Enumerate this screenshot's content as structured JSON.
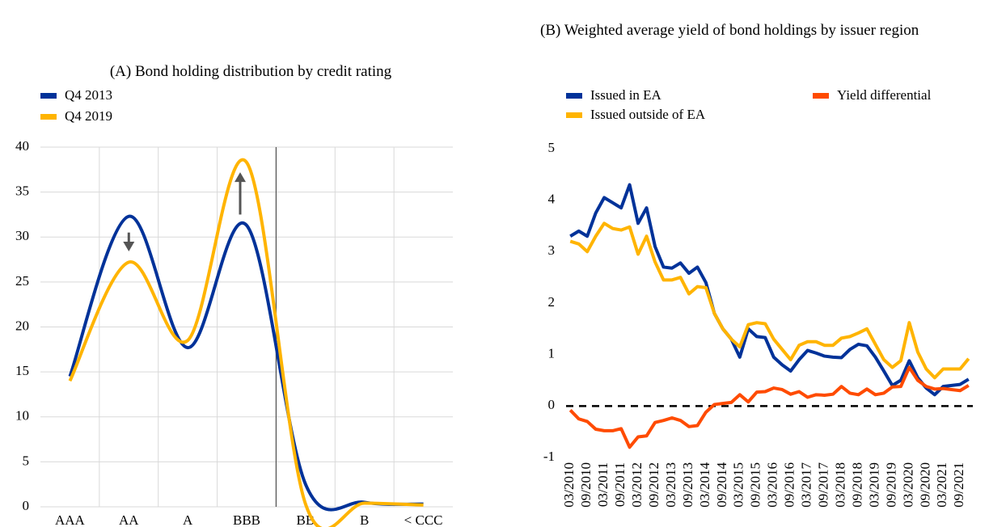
{
  "chart_data": [
    {
      "type": "line",
      "title": "(A) Bond holding distribution by credit rating",
      "categories": [
        "AAA",
        "AA",
        "A",
        "BBB",
        "BB",
        "B",
        "< CCC"
      ],
      "series": [
        {
          "name": "Q4 2013",
          "color": "#003299",
          "values": [
            14.5,
            32.3,
            17.7,
            31.3,
            2.5,
            0.5,
            0.3
          ]
        },
        {
          "name": "Q4 2019",
          "color": "#ffb400",
          "values": [
            14.0,
            27.2,
            18.5,
            38.3,
            0.3,
            0.4,
            0.2
          ]
        }
      ],
      "ylim": [
        0,
        40
      ],
      "yticks": [
        0,
        5,
        10,
        15,
        20,
        25,
        30,
        35,
        40
      ],
      "grid": true,
      "smooth": true
    },
    {
      "type": "line",
      "title": "(B) Weighted average yield of bond holdings by issuer region",
      "categories": [
        "03/2010",
        null,
        "09/2010",
        null,
        "03/2011",
        null,
        "09/2011",
        null,
        "03/2012",
        null,
        "09/2012",
        null,
        "03/2013",
        null,
        "09/2013",
        null,
        "03/2014",
        null,
        "09/2014",
        null,
        "03/2015",
        null,
        "09/2015",
        null,
        "03/2016",
        null,
        "09/2016",
        null,
        "03/2017",
        null,
        "09/2017",
        null,
        "03/2018",
        null,
        "09/2018",
        null,
        "03/2019",
        null,
        "09/2019",
        null,
        "03/2020",
        null,
        "09/2020",
        null,
        "03/2021",
        null,
        "09/2021",
        null
      ],
      "series": [
        {
          "name": "Issued in EA",
          "color": "#003299",
          "values": [
            3.3,
            3.4,
            3.3,
            3.75,
            4.05,
            3.95,
            3.85,
            4.3,
            3.55,
            3.85,
            3.1,
            2.7,
            2.68,
            2.78,
            2.58,
            2.7,
            2.4,
            1.8,
            1.5,
            1.3,
            0.95,
            1.5,
            1.35,
            1.33,
            0.95,
            0.8,
            0.68,
            0.9,
            1.08,
            1.03,
            0.97,
            0.95,
            0.94,
            1.1,
            1.2,
            1.17,
            0.95,
            0.68,
            0.4,
            0.5,
            0.88,
            0.55,
            0.35,
            0.22,
            0.38,
            0.4,
            0.42,
            0.52
          ]
        },
        {
          "name": "Issued outside of EA",
          "color": "#ffb400",
          "values": [
            3.2,
            3.15,
            3.0,
            3.3,
            3.55,
            3.45,
            3.42,
            3.48,
            2.95,
            3.3,
            2.8,
            2.45,
            2.45,
            2.5,
            2.18,
            2.32,
            2.3,
            1.8,
            1.5,
            1.3,
            1.15,
            1.58,
            1.62,
            1.6,
            1.3,
            1.1,
            0.9,
            1.18,
            1.25,
            1.25,
            1.18,
            1.18,
            1.32,
            1.35,
            1.42,
            1.5,
            1.2,
            0.9,
            0.75,
            0.88,
            1.62,
            1.05,
            0.72,
            0.55,
            0.72,
            0.72,
            0.72,
            0.92
          ]
        },
        {
          "name": "Yield differential",
          "color": "#ff4b00",
          "values": [
            -0.08,
            -0.25,
            -0.3,
            -0.45,
            -0.48,
            -0.48,
            -0.44,
            -0.8,
            -0.6,
            -0.58,
            -0.32,
            -0.28,
            -0.23,
            -0.28,
            -0.4,
            -0.38,
            -0.12,
            0.03,
            0.05,
            0.07,
            0.22,
            0.08,
            0.27,
            0.28,
            0.35,
            0.32,
            0.23,
            0.28,
            0.17,
            0.22,
            0.21,
            0.23,
            0.38,
            0.25,
            0.22,
            0.33,
            0.22,
            0.25,
            0.37,
            0.38,
            0.75,
            0.5,
            0.38,
            0.33,
            0.34,
            0.32,
            0.3,
            0.4
          ]
        }
      ],
      "ylim": [
        -1,
        5
      ],
      "yticks": [
        -1,
        0,
        1,
        2,
        3,
        4,
        5
      ],
      "grid": false,
      "reference_line": 0
    }
  ]
}
